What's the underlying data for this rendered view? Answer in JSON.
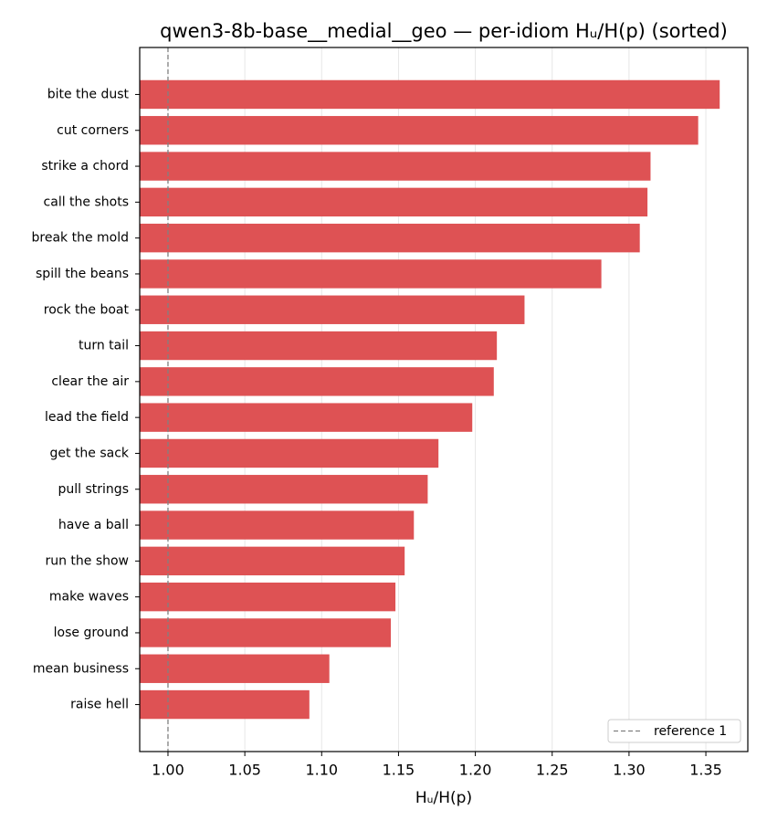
{
  "chart_data": {
    "type": "barh",
    "title": "qwen3-8b-base__medial__geo — per-idiom Hᵤ/H(p) (sorted)",
    "xlabel": "Hᵤ/H(p)",
    "categories": [
      "bite the dust",
      "cut corners",
      "strike a chord",
      "call the shots",
      "break the mold",
      "spill the beans",
      "rock the boat",
      "turn tail",
      "clear the air",
      "lead the field",
      "get the sack",
      "pull strings",
      "have a ball",
      "run the show",
      "make waves",
      "lose ground",
      "mean business",
      "raise hell"
    ],
    "values": [
      1.359,
      1.345,
      1.314,
      1.312,
      1.307,
      1.282,
      1.232,
      1.214,
      1.212,
      1.198,
      1.176,
      1.169,
      1.16,
      1.154,
      1.148,
      1.145,
      1.105,
      1.092
    ],
    "color": "#de5254",
    "xlim": [
      0.9816,
      1.3773
    ],
    "xticks": [
      {
        "value": 1.0,
        "label": "1.00"
      },
      {
        "value": 1.05,
        "label": "1.05"
      },
      {
        "value": 1.1,
        "label": "1.10"
      },
      {
        "value": 1.15,
        "label": "1.15"
      },
      {
        "value": 1.2,
        "label": "1.20"
      },
      {
        "value": 1.25,
        "label": "1.25"
      },
      {
        "value": 1.3,
        "label": "1.30"
      },
      {
        "value": 1.35,
        "label": "1.35"
      }
    ],
    "grid": true,
    "reference": {
      "name": "reference 1",
      "value": 1,
      "color": "#808080"
    },
    "legend": "lower right"
  }
}
